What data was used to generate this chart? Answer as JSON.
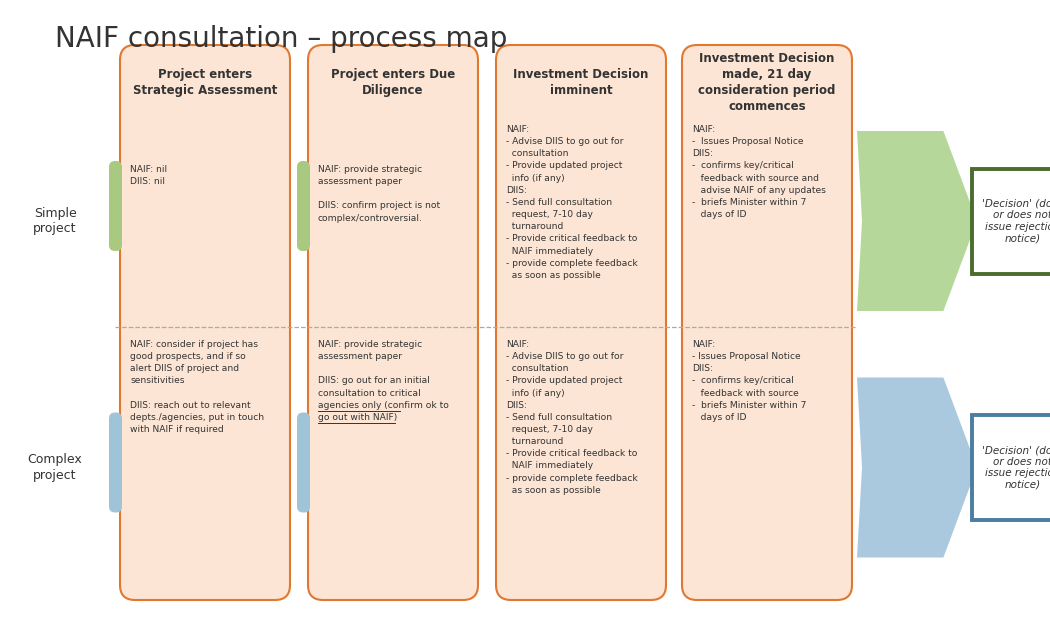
{
  "title": "NAIF consultation – process map",
  "title_fontsize": 20,
  "bg_color": "#ffffff",
  "col_bg": "#fce5d4",
  "col_border": "#e07830",
  "simple_bar_color": "#a8c97f",
  "complex_bar_color": "#9fc4d8",
  "arrow_simple_color": "#b5d89a",
  "arrow_complex_color": "#aac9de",
  "decision_simple_border": "#4a6d2e",
  "decision_complex_border": "#4a7da0",
  "text_color": "#333333",
  "dashed_line_color": "#aaaaaa",
  "stage_headers": [
    "Project enters\nStrategic Assessment",
    "Project enters Due\nDiligence",
    "Investment Decision\nimminent",
    "Investment Decision\nmade, 21 day\nconsideration period\ncommences"
  ],
  "simple_texts": [
    "NAIF: nil\nDIIS: nil",
    "NAIF: provide strategic\nassessment paper\n\nDIIS: confirm project is not\ncomplex/controversial.",
    "NAIF:\n- Advise DIIS to go out for\n  consultation\n- Provide updated project\n  info (if any)\nDIIS:\n- Send full consultation\n  request, 7-10 day\n  turnaround\n- Provide critical feedback to\n  NAIF immediately\n- provide complete feedback\n  as soon as possible",
    "NAIF:\n-  Issues Proposal Notice\nDIIS:\n-  confirms key/critical\n   feedback with source and\n   advise NAIF of any updates\n-  briefs Minister within 7\n   days of ID"
  ],
  "complex_texts": [
    "NAIF: consider if project has\ngood prospects, and if so\nalert DIIS of project and\nsensitivities\n\nDIIS: reach out to relevant\ndepts./agencies, put in touch\nwith NAIF if required",
    "NAIF: provide strategic\nassessment paper\n\nDIIS: go out for an initial\nconsultation to critical\nagencies only (confirm ok to\ngo out with NAIF)",
    "NAIF:\n- Advise DIIS to go out for\n  consultation\n- Provide updated project\n  info (if any)\nDIIS:\n- Send full consultation\n  request, 7-10 day\n  turnaround\n- Provide critical feedback to\n  NAIF immediately\n- provide complete feedback\n  as soon as possible",
    "NAIF:\n- Issues Proposal Notice\nDIIS:\n-  confirms key/critical\n   feedback with source\n-  briefs Minister within 7\n   days of ID"
  ],
  "decision_text": "'Decision' (does\nor does not\nissue rejection\nnotice)"
}
